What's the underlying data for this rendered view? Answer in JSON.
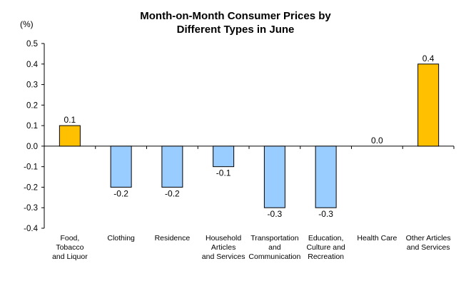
{
  "chart_data": {
    "type": "bar",
    "title": [
      "Month-on-Month Consumer Prices by",
      "Different Types in June"
    ],
    "ylabel": "(%)",
    "ylim": [
      -0.4,
      0.5
    ],
    "yticks": [
      "0.5",
      "0.4",
      "0.3",
      "0.2",
      "0.1",
      "0.0",
      "-0.1",
      "-0.2",
      "-0.3",
      "-0.4"
    ],
    "categories": [
      [
        "Food,",
        "Tobacco",
        "and Liquor"
      ],
      [
        "Clothing"
      ],
      [
        "Residence"
      ],
      [
        "Household",
        "Articles",
        "and Services"
      ],
      [
        "Transportation",
        "and",
        "Communication"
      ],
      [
        "Education,",
        "Culture and",
        "Recreation"
      ],
      [
        "Health Care"
      ],
      [
        "Other Articles",
        "and Services"
      ]
    ],
    "values": [
      0.1,
      -0.2,
      -0.2,
      -0.1,
      -0.3,
      -0.3,
      0.0,
      0.4
    ],
    "data_labels": [
      "0.1",
      "-0.2",
      "-0.2",
      "-0.1",
      "-0.3",
      "-0.3",
      "0.0",
      "0.4"
    ],
    "colors": {
      "positive": "#FFC000",
      "negative": "#99CCFF",
      "border": "#000000"
    },
    "grid": false,
    "legend": "none"
  }
}
